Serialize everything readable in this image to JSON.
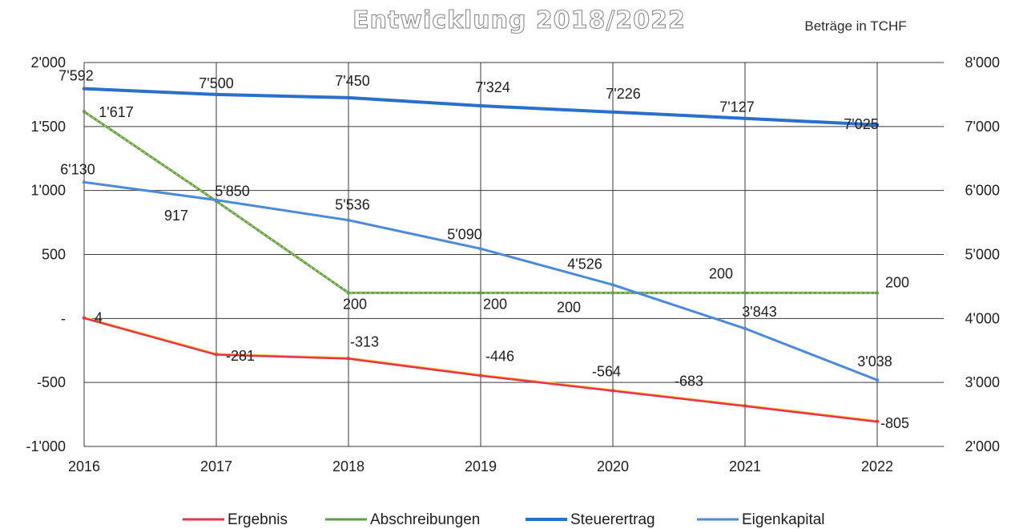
{
  "chart_data": {
    "type": "line",
    "title": "Entwicklung 2018/2022",
    "unit_note": "Beträge in TCHF",
    "categories": [
      "2016",
      "2017",
      "2018",
      "2019",
      "2020",
      "2021",
      "2022"
    ],
    "y_left": {
      "ylim": [
        -1000,
        2000
      ],
      "ticks": [
        -1000,
        -500,
        0,
        500,
        1000,
        1500,
        2000
      ],
      "tick_labels": [
        "-1'000",
        "-500",
        "-",
        "500",
        "1'000",
        "1'500",
        "2'000"
      ]
    },
    "y_right": {
      "ylim": [
        2000,
        8000
      ],
      "ticks": [
        2000,
        3000,
        4000,
        5000,
        6000,
        7000,
        8000
      ],
      "tick_labels": [
        "2'000",
        "3'000",
        "4'000",
        "5'000",
        "6'000",
        "7'000",
        "8'000"
      ]
    },
    "grid": true,
    "legend_position": "bottom",
    "series": [
      {
        "name": "Ergebnis",
        "axis": "left",
        "color": "#e8334a",
        "values": [
          4,
          -281,
          -313,
          -446,
          -564,
          -683,
          -805
        ],
        "labels": [
          "4",
          "-281",
          "-313",
          "-446",
          "-564",
          "-683",
          "-805"
        ]
      },
      {
        "name": "Abschreibungen",
        "axis": "left",
        "color": "#5f9e4e",
        "values": [
          1617,
          917,
          200,
          200,
          200,
          200,
          200
        ],
        "labels": [
          "1'617",
          "917",
          "200",
          "200",
          "200",
          "200",
          "200"
        ]
      },
      {
        "name": "Steuerertrag",
        "axis": "right",
        "color": "#2a6fc9",
        "values": [
          7592,
          7500,
          7450,
          7324,
          7226,
          7127,
          7025
        ],
        "labels": [
          "7'592",
          "7'500",
          "7'450",
          "7'324",
          "7'226",
          "7'127",
          "7'025"
        ]
      },
      {
        "name": "Eigenkapital",
        "axis": "right",
        "color": "#4a8ad6",
        "values": [
          6130,
          5850,
          5536,
          5090,
          4526,
          3843,
          3038
        ],
        "labels": [
          "6'130",
          "5'850",
          "5'536",
          "5'090",
          "4'526",
          "3'843",
          "3'038"
        ]
      }
    ]
  }
}
